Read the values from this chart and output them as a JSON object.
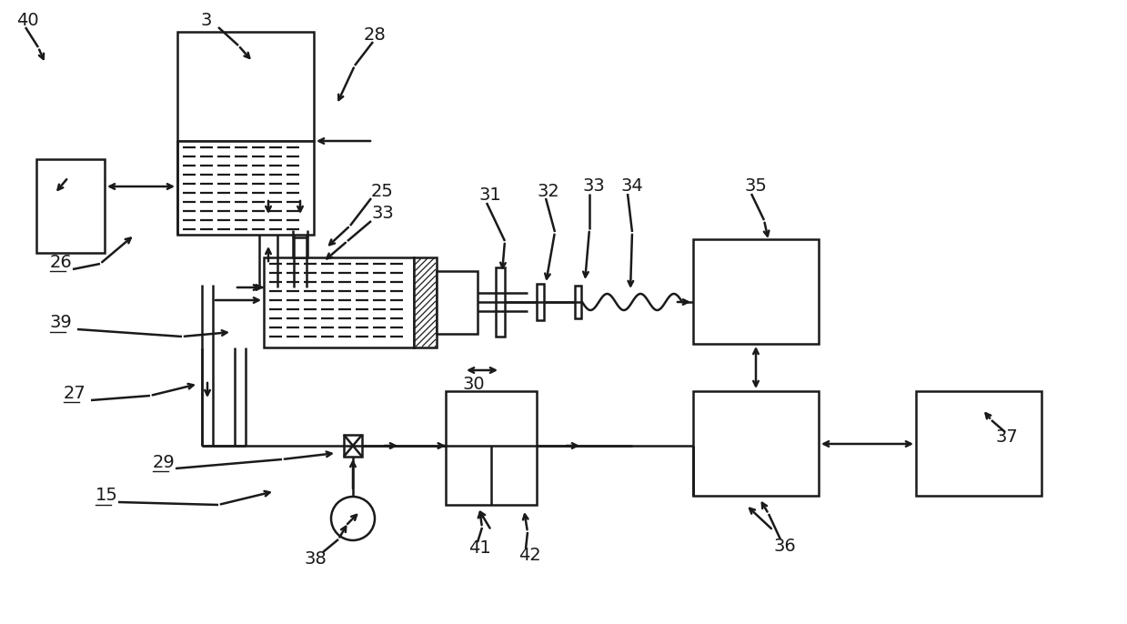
{
  "bg": "#ffffff",
  "lc": "#1a1a1a",
  "lw": 1.8,
  "fig_w": 12.39,
  "fig_h": 6.86,
  "dpi": 100
}
